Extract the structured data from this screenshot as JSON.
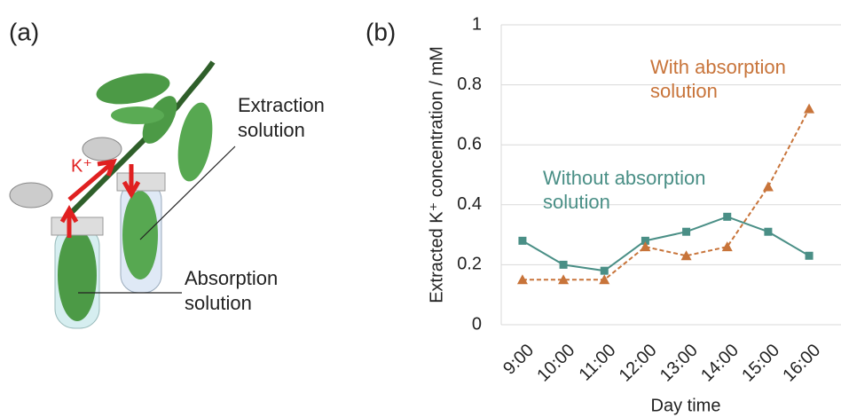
{
  "panel_a": {
    "label": "(a)",
    "extraction": "Extraction solution",
    "absorption": "Absorption solution",
    "ion": "K⁺"
  },
  "chart_data": {
    "type": "line",
    "panel_label": "(b)",
    "x_label": "Day time",
    "y_label": "Extracted K⁺ concentration  / mM",
    "categories": [
      "9:00",
      "10:00",
      "11:00",
      "12:00",
      "13:00",
      "14:00",
      "15:00",
      "16:00"
    ],
    "series": [
      {
        "name": "Without absorption solution",
        "color": "#4a8f86",
        "dashed": false,
        "marker": "square",
        "values": [
          0.28,
          0.2,
          0.18,
          0.28,
          0.31,
          0.36,
          0.31,
          0.23
        ]
      },
      {
        "name": "With absorption solution",
        "color": "#c8743a",
        "dashed": true,
        "marker": "triangle",
        "values": [
          0.15,
          0.15,
          0.15,
          0.26,
          0.23,
          0.26,
          0.46,
          0.72
        ]
      }
    ],
    "ylim": [
      0,
      1
    ],
    "yticks": [
      0,
      0.2,
      0.4,
      0.6,
      0.8,
      1
    ],
    "grid": true
  }
}
